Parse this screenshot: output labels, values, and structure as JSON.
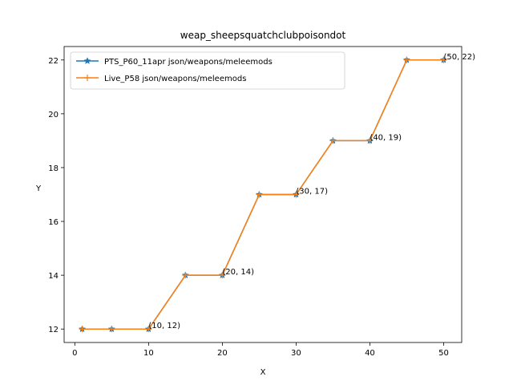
{
  "chart_data": {
    "type": "line",
    "title": "weap_sheepsquatchclubpoisondot",
    "xlabel": "X",
    "ylabel": "Y",
    "xlim": [
      -1.45,
      52.45
    ],
    "ylim": [
      11.5,
      22.5
    ],
    "xticks": [
      0,
      10,
      20,
      30,
      40,
      50
    ],
    "yticks": [
      12,
      14,
      16,
      18,
      20,
      22
    ],
    "grid": false,
    "legend_location": "upper-left",
    "series": [
      {
        "name": "PTS_P60_11apr json/weapons/meleemods",
        "color": "#1f77b4",
        "marker": "star",
        "x": [
          1,
          5,
          10,
          15,
          20,
          25,
          30,
          35,
          40,
          45,
          50
        ],
        "y": [
          12,
          12,
          12,
          14,
          14,
          17,
          17,
          19,
          19,
          22,
          22
        ]
      },
      {
        "name": "Live_P58 json/weapons/meleemods",
        "color": "#ff7f0e",
        "marker": "plus",
        "x": [
          1,
          5,
          10,
          15,
          20,
          25,
          30,
          35,
          40,
          45,
          50
        ],
        "y": [
          12,
          12,
          12,
          14,
          14,
          17,
          17,
          19,
          19,
          22,
          22
        ]
      }
    ],
    "annotations": [
      {
        "x": 10,
        "y": 12,
        "text": "(10, 12)"
      },
      {
        "x": 20,
        "y": 14,
        "text": "(20, 14)"
      },
      {
        "x": 30,
        "y": 17,
        "text": "(30, 17)"
      },
      {
        "x": 40,
        "y": 19,
        "text": "(40, 19)"
      },
      {
        "x": 50,
        "y": 22,
        "text": "(50, 22)"
      }
    ]
  }
}
